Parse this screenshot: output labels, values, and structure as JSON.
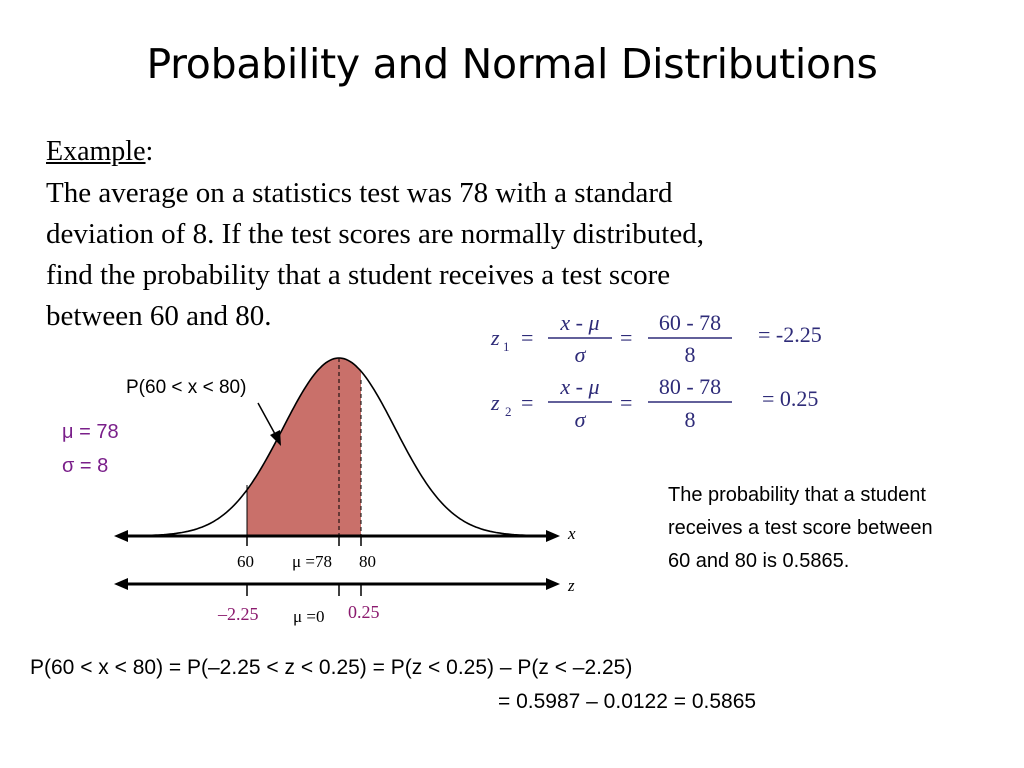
{
  "slide": {
    "title": "Probability and Normal Distributions",
    "example_label": "Example",
    "example_colon": ":",
    "problem_lines": [
      "The average on a statistics test was 78 with a standard",
      "deviation of 8.  If the test scores are normally distributed,",
      "find the probability that a student receives a test score",
      "between 60 and 80."
    ]
  },
  "diagram": {
    "region_label": "P(60 < x < 80)",
    "mu_label": "μ = 78",
    "sigma_label": "σ = 8",
    "x_axis_label": "x",
    "z_axis_label": "z",
    "x_ticks": [
      "60",
      "μ =78",
      "80"
    ],
    "z_ticks": [
      "–2.25",
      "μ =0",
      "0.25"
    ],
    "colors": {
      "shade": "#c9706a",
      "z_tick": "#8b1a6e",
      "params": "#7a1f8a",
      "formula": "#2e2b78"
    }
  },
  "z_formulas": [
    {
      "var": "z",
      "sub": "1",
      "eq": "=",
      "num_a": "x - μ",
      "den_a": "σ",
      "eq2": "=",
      "num_b": "60 - 78",
      "den_b": "8",
      "result": "= -2.25"
    },
    {
      "var": "z",
      "sub": "2",
      "eq": "=",
      "num_a": "x - μ",
      "den_a": "σ",
      "eq2": "=",
      "num_b": "80 - 78",
      "den_b": "8",
      "result": "= 0.25"
    }
  ],
  "conclusion_lines": [
    "The probability that a student",
    "receives a test score between",
    "60 and 80 is 0.5865."
  ],
  "final": {
    "line1": "P(60 < x < 80) = P(–2.25 < z < 0.25) = P(z < 0.25) – P(z < –2.25)",
    "line2": "=  0.5987 – 0.0122 = 0.5865"
  }
}
